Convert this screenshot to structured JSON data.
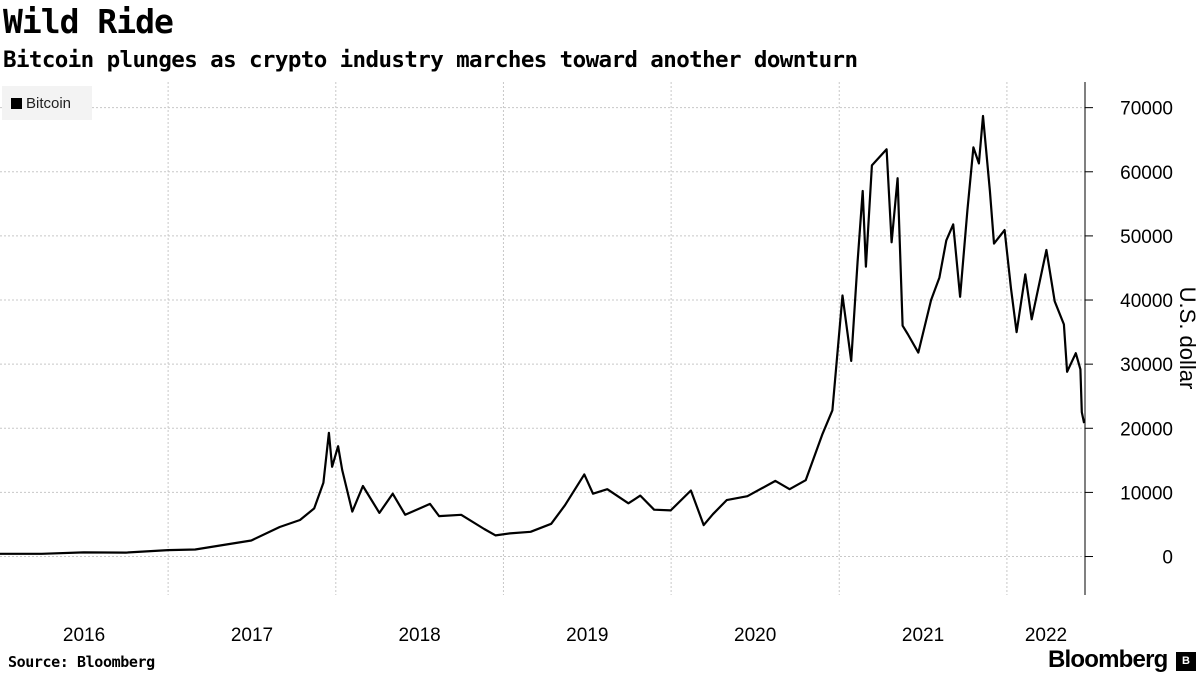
{
  "chart_data": {
    "type": "line",
    "title": "Wild Ride",
    "subtitle": "Bitcoin plunges as crypto industry marches toward another downturn",
    "ylabel": "U.S. dollar",
    "ylim": [
      -6000,
      74000
    ],
    "yticks": [
      0,
      10000,
      20000,
      30000,
      40000,
      50000,
      60000,
      70000
    ],
    "x_tick_labels": [
      "2016",
      "2017",
      "2018",
      "2019",
      "2020",
      "2021",
      "2022"
    ],
    "xlim": [
      "2016-01-01",
      "2022-06-20"
    ],
    "grid": true,
    "legend_position": "top-left",
    "series": [
      {
        "name": "Bitcoin",
        "color": "#000000",
        "x": [
          "2016-01-01",
          "2016-04-01",
          "2016-07-01",
          "2016-10-01",
          "2017-01-01",
          "2017-03-01",
          "2017-05-01",
          "2017-07-01",
          "2017-09-01",
          "2017-10-15",
          "2017-11-15",
          "2017-12-05",
          "2017-12-17",
          "2017-12-24",
          "2018-01-06",
          "2018-01-15",
          "2018-02-06",
          "2018-03-01",
          "2018-04-06",
          "2018-05-05",
          "2018-06-01",
          "2018-07-25",
          "2018-08-14",
          "2018-10-01",
          "2018-11-20",
          "2018-12-15",
          "2019-01-15",
          "2019-03-01",
          "2019-04-15",
          "2019-05-15",
          "2019-06-26",
          "2019-07-15",
          "2019-08-15",
          "2019-09-30",
          "2019-10-26",
          "2019-11-25",
          "2019-12-31",
          "2020-02-13",
          "2020-03-12",
          "2020-04-01",
          "2020-05-01",
          "2020-06-15",
          "2020-08-15",
          "2020-09-15",
          "2020-10-20",
          "2020-11-25",
          "2020-12-17",
          "2021-01-08",
          "2021-01-27",
          "2021-02-10",
          "2021-02-21",
          "2021-02-28",
          "2021-03-13",
          "2021-04-14",
          "2021-04-25",
          "2021-05-08",
          "2021-05-19",
          "2021-05-30",
          "2021-06-22",
          "2021-07-20",
          "2021-08-07",
          "2021-08-22",
          "2021-09-06",
          "2021-09-21",
          "2021-10-07",
          "2021-10-20",
          "2021-11-01",
          "2021-11-10",
          "2021-11-25",
          "2021-12-04",
          "2021-12-27",
          "2022-01-10",
          "2022-01-22",
          "2022-02-10",
          "2022-02-24",
          "2022-03-28",
          "2022-04-15",
          "2022-05-05",
          "2022-05-12",
          "2022-05-31",
          "2022-06-10",
          "2022-06-13",
          "2022-06-18"
        ],
        "y": [
          430,
          420,
          650,
          610,
          1000,
          1100,
          1800,
          2500,
          4600,
          5700,
          7500,
          11500,
          19300,
          14000,
          17200,
          13500,
          7000,
          11000,
          6800,
          9800,
          6500,
          8200,
          6300,
          6500,
          4300,
          3300,
          3600,
          3850,
          5100,
          8000,
          12800,
          9800,
          10500,
          8300,
          9500,
          7300,
          7200,
          10300,
          4900,
          6600,
          8800,
          9400,
          11800,
          10500,
          11900,
          19000,
          22800,
          40700,
          30500,
          46000,
          57000,
          45200,
          61000,
          63500,
          49000,
          59000,
          36000,
          34700,
          31800,
          40000,
          43500,
          49300,
          51800,
          40500,
          54000,
          63800,
          61300,
          68700,
          57000,
          48800,
          50900,
          41800,
          35000,
          44000,
          37000,
          47800,
          39800,
          36200,
          28800,
          31700,
          29200,
          22500,
          20800
        ]
      }
    ]
  },
  "source_label": "Source: Bloomberg",
  "brand_label": "Bloomberg",
  "brand_icon_label": "B"
}
